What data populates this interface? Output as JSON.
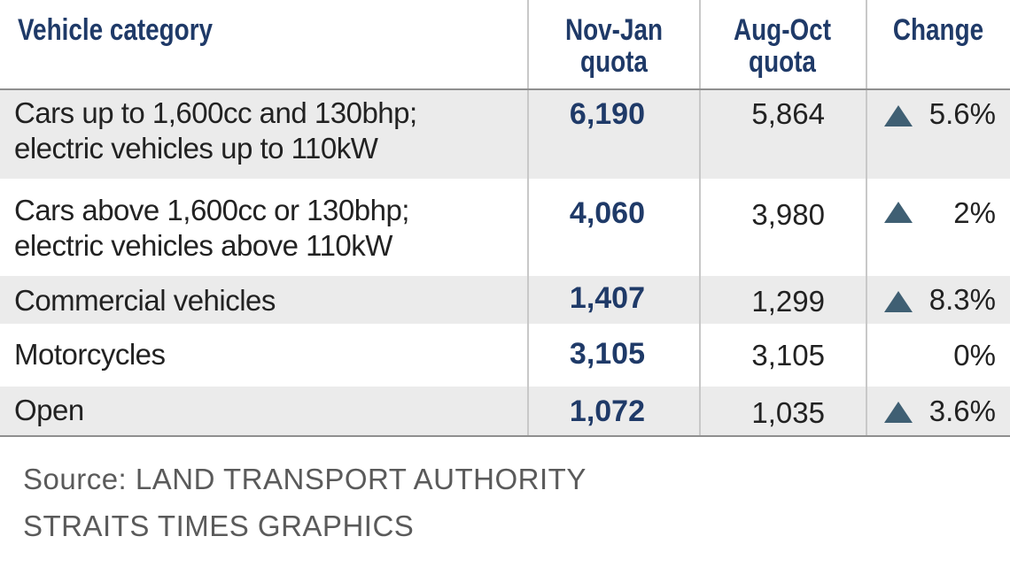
{
  "chart_data": {
    "type": "table",
    "columns": [
      "Vehicle category",
      "Nov-Jan quota",
      "Aug-Oct quota",
      "Change"
    ],
    "header": {
      "category": "Vehicle category",
      "nov_jan_line1": "Nov-Jan",
      "nov_jan_line2": "quota",
      "aug_oct_line1": "Aug-Oct",
      "aug_oct_line2": "quota",
      "change": "Change"
    },
    "rows": [
      {
        "category_line1": "Cars up to 1,600cc and 130bhp;",
        "category_line2": "electric vehicles up to 110kW",
        "nov_jan": "6,190",
        "aug_oct": "5,864",
        "change": "5.6%",
        "increase": true
      },
      {
        "category_line1": "Cars above 1,600cc or 130bhp;",
        "category_line2": "electric vehicles above 110kW",
        "nov_jan": "4,060",
        "aug_oct": "3,980",
        "change": "2%",
        "increase": true
      },
      {
        "category_line1": "Commercial vehicles",
        "category_line2": "",
        "nov_jan": "1,407",
        "aug_oct": "1,299",
        "change": "8.3%",
        "increase": true
      },
      {
        "category_line1": "Motorcycles",
        "category_line2": "",
        "nov_jan": "3,105",
        "aug_oct": "3,105",
        "change": "0%",
        "increase": false
      },
      {
        "category_line1": "Open",
        "category_line2": "",
        "nov_jan": "1,072",
        "aug_oct": "1,035",
        "change": "3.6%",
        "increase": true
      }
    ],
    "colors": {
      "header_text": "#1f3a68",
      "highlight_value": "#1f3a68",
      "increase_marker": "#3f5f73",
      "row_stripe": "#ebebeb"
    }
  },
  "footer": {
    "source": "Source: LAND TRANSPORT AUTHORITY",
    "credit": "STRAITS TIMES GRAPHICS"
  },
  "icons": {
    "increase": "up-triangle-icon"
  }
}
